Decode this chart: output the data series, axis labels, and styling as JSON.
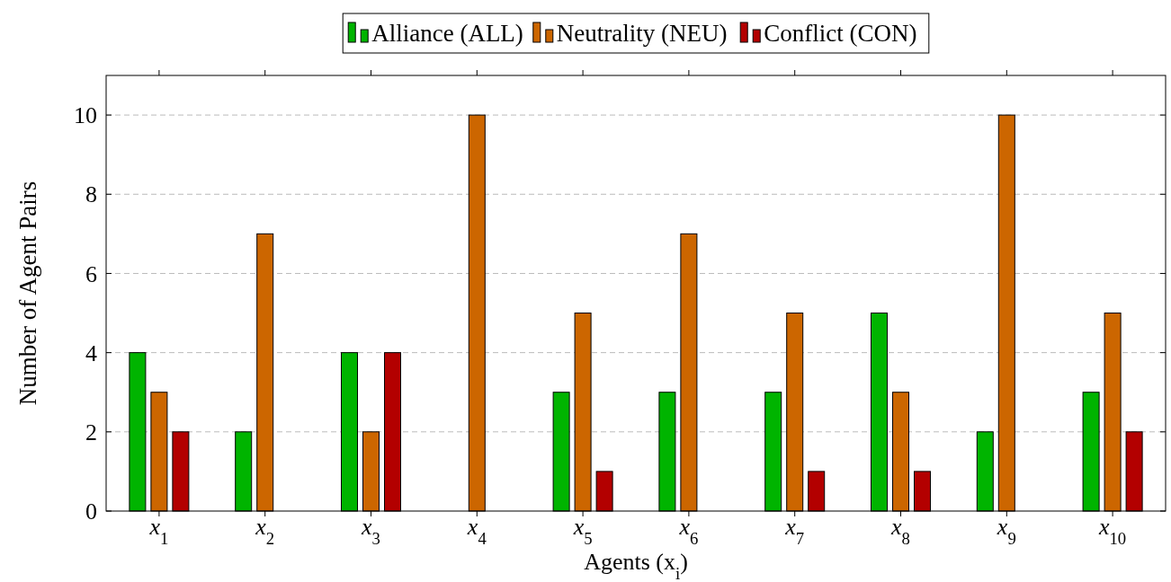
{
  "chart_data": {
    "type": "bar",
    "xlabel": "Agents (x$_{i}$)",
    "ylabel": "Number of Agent Pairs",
    "categories": [
      "x$_{1}$",
      "x$_{2}$",
      "x$_{3}$",
      "x$_{4}$",
      "x$_{5}$",
      "x$_{6}$",
      "x$_{7}$",
      "x$_{8}$",
      "x$_{9}$",
      "x$_{10}$"
    ],
    "series": [
      {
        "name": "Alliance (ALL)",
        "color": "#00b400",
        "values": [
          4,
          2,
          4,
          0,
          3,
          3,
          3,
          5,
          2,
          3
        ]
      },
      {
        "name": "Neutrality (NEU)",
        "color": "#cc6600",
        "values": [
          3,
          7,
          2,
          10,
          5,
          7,
          5,
          3,
          10,
          5
        ]
      },
      {
        "name": "Conflict (CON)",
        "color": "#b30000",
        "values": [
          2,
          0,
          4,
          0,
          1,
          0,
          1,
          1,
          0,
          2
        ]
      }
    ],
    "ylim": [
      0,
      11
    ],
    "yticks": [
      0,
      2,
      4,
      6,
      8,
      10
    ],
    "grid": "y",
    "legend": "top"
  }
}
